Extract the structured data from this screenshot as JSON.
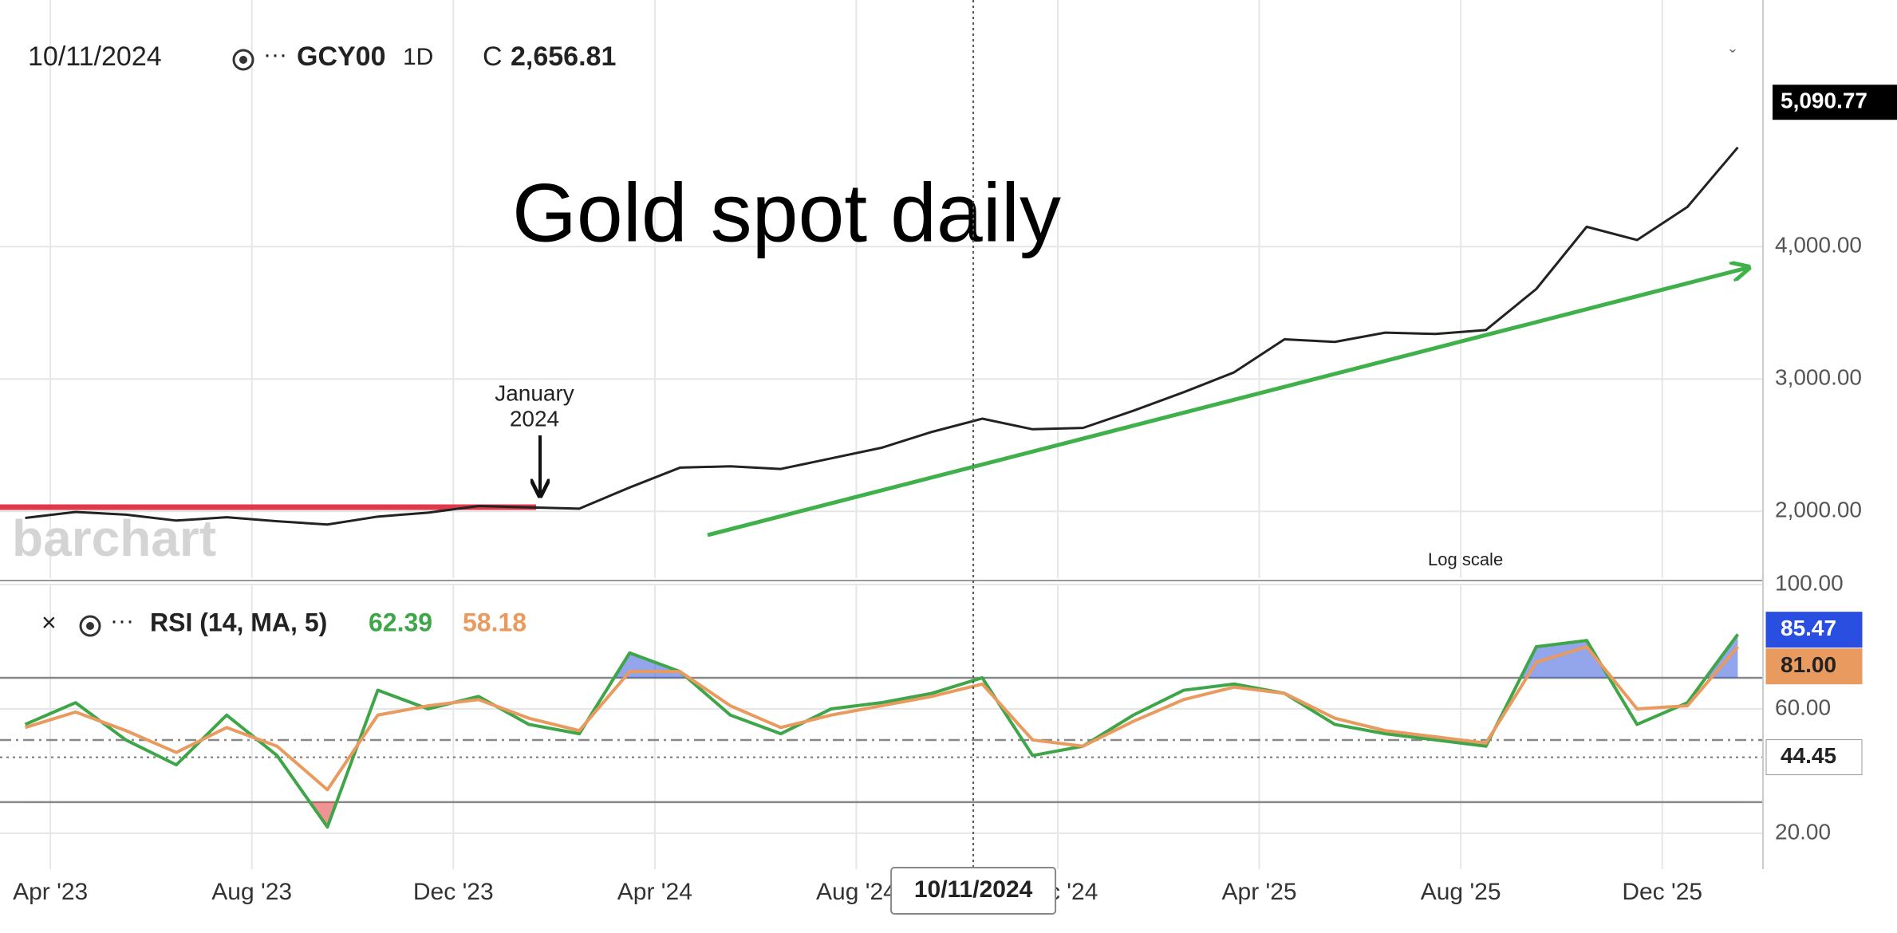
{
  "header": {
    "date": "10/11/2024",
    "symbol": "GCY00",
    "interval": "1D",
    "close_label": "C",
    "close": "2,656.81"
  },
  "chart_data": [
    {
      "type": "line",
      "title": "Gold spot daily",
      "annotation": [
        "January",
        "2024"
      ],
      "scale_button": "Log scale",
      "watermark": "barchart",
      "crosshair_label": "10/11/2024",
      "x": [
        "2023-03",
        "2023-04",
        "2023-05",
        "2023-06",
        "2023-07",
        "2023-08",
        "2023-09",
        "2023-10",
        "2023-11",
        "2023-12",
        "2024-01",
        "2024-02",
        "2024-03",
        "2024-04",
        "2024-05",
        "2024-06",
        "2024-07",
        "2024-08",
        "2024-09",
        "2024-10",
        "2024-11",
        "2024-12",
        "2025-01",
        "2025-02",
        "2025-03",
        "2025-04",
        "2025-05",
        "2025-06",
        "2025-07",
        "2025-08",
        "2025-09",
        "2025-10",
        "2025-11",
        "2025-12",
        "2026-01"
      ],
      "values": [
        1950,
        1995,
        1975,
        1930,
        1955,
        1925,
        1900,
        1960,
        1990,
        2040,
        2030,
        2020,
        2180,
        2330,
        2340,
        2320,
        2400,
        2480,
        2600,
        2700,
        2620,
        2630,
        2760,
        2900,
        3050,
        3300,
        3280,
        3350,
        3340,
        3370,
        3680,
        4150,
        4050,
        4300,
        4750
      ],
      "color": "#222222",
      "last_price": {
        "value": 5090.77,
        "label": "5,090.77"
      },
      "xlim": [
        "2023-03",
        "2026-02"
      ],
      "ylim": [
        1495,
        5743
      ],
      "yticks": [
        {
          "value": 2000,
          "label": "2,000.00"
        },
        {
          "value": 3000,
          "label": "3,000.00"
        },
        {
          "value": 4000,
          "label": "4,000.00"
        }
      ],
      "grid": true
    },
    {
      "type": "line",
      "title": "RSI (14, MA, 5)",
      "x": [
        "2023-03",
        "2023-04",
        "2023-05",
        "2023-06",
        "2023-07",
        "2023-08",
        "2023-09",
        "2023-10",
        "2023-11",
        "2023-12",
        "2024-01",
        "2024-02",
        "2024-03",
        "2024-04",
        "2024-05",
        "2024-06",
        "2024-07",
        "2024-08",
        "2024-09",
        "2024-10",
        "2024-11",
        "2024-12",
        "2025-01",
        "2025-02",
        "2025-03",
        "2025-04",
        "2025-05",
        "2025-06",
        "2025-07",
        "2025-08",
        "2025-09",
        "2025-10",
        "2025-11",
        "2025-12",
        "2026-01"
      ],
      "series": [
        {
          "color": "#3ea649",
          "legend_value": "62.39",
          "values": [
            55,
            62,
            50,
            42,
            58,
            45,
            22,
            66,
            60,
            64,
            55,
            52,
            78,
            72,
            58,
            52,
            60,
            62,
            65,
            70,
            45,
            48,
            58,
            66,
            68,
            65,
            55,
            52,
            50,
            48,
            80,
            82,
            55,
            62,
            84
          ]
        },
        {
          "color": "#e99a5f",
          "legend_value": "58.18",
          "values": [
            54,
            59,
            53,
            46,
            54,
            48,
            34,
            58,
            61,
            63,
            57,
            53,
            72,
            72,
            61,
            54,
            58,
            61,
            64,
            68,
            50,
            48,
            56,
            63,
            67,
            65,
            57,
            53,
            51,
            49,
            75,
            80,
            60,
            61,
            80
          ]
        }
      ],
      "levels": [
        70,
        50,
        30
      ],
      "overbought_color": "#3b5bdb",
      "oversold_color": "#e23b3b",
      "tags": [
        {
          "value": 85.47,
          "label": "85.47",
          "color": "#2a4fe0"
        },
        {
          "value": 81.0,
          "label": "81.00",
          "color": "#e99a5f"
        },
        {
          "value": 44.45,
          "label": "44.45",
          "color": "#ffffff"
        }
      ],
      "xlim": [
        "2023-03",
        "2026-02"
      ],
      "ylim": [
        11,
        100
      ],
      "yticks": [
        {
          "value": 100,
          "label": "100.00"
        },
        {
          "value": 60,
          "label": "60.00"
        },
        {
          "value": 20,
          "label": "20.00"
        }
      ],
      "xticks": [
        {
          "value": "2023-04",
          "label": "Apr '23"
        },
        {
          "value": "2023-08",
          "label": "Aug '23"
        },
        {
          "value": "2023-12",
          "label": "Dec '23"
        },
        {
          "value": "2024-04",
          "label": "Apr '24"
        },
        {
          "value": "2024-08",
          "label": "Aug '24"
        },
        {
          "value": "2024-12",
          "label": "Dec '24"
        },
        {
          "value": "2025-04",
          "label": "Apr '25"
        },
        {
          "value": "2025-08",
          "label": "Aug '25"
        },
        {
          "value": "2025-12",
          "label": "Dec '25"
        }
      ],
      "grid": true
    }
  ]
}
